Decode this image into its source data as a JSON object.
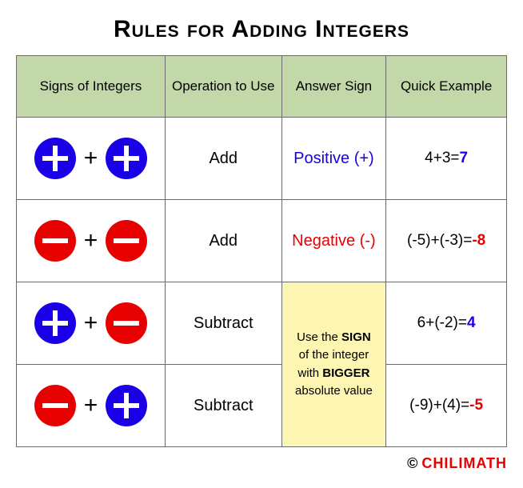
{
  "title": "Rules for Adding Integers",
  "headers": {
    "signs": "Signs of Integers",
    "operation": "Operation to Use",
    "answer": "Answer Sign",
    "example": "Quick Example"
  },
  "rows": {
    "r1": {
      "left": {
        "color": "blue",
        "shape": "plus"
      },
      "right": {
        "color": "blue",
        "shape": "plus"
      },
      "operation": "Add",
      "answer": "Positive (+)",
      "answer_color": "#1a00e6",
      "example_expr": "4+3=",
      "example_result": "7",
      "result_class": "result-pos"
    },
    "r2": {
      "left": {
        "color": "red",
        "shape": "minus"
      },
      "right": {
        "color": "red",
        "shape": "minus"
      },
      "operation": "Add",
      "answer": "Negative (-)",
      "answer_color": "#e60000",
      "example_expr": "(-5)+(-3)=",
      "example_result": "-8",
      "result_class": "result-neg"
    },
    "r3": {
      "left": {
        "color": "blue",
        "shape": "plus"
      },
      "right": {
        "color": "red",
        "shape": "minus"
      },
      "operation": "Subtract",
      "example_expr": "6+(-2)=",
      "example_result": "4",
      "result_class": "result-pos"
    },
    "r4": {
      "left": {
        "color": "red",
        "shape": "minus"
      },
      "right": {
        "color": "blue",
        "shape": "plus"
      },
      "operation": "Subtract",
      "example_expr": "(-9)+(4)=",
      "example_result": "-5",
      "result_class": "result-neg"
    }
  },
  "merged_line1_pre": "Use the ",
  "merged_line1_bold": "SIGN",
  "merged_line2": "of the integer",
  "merged_line3_pre": "with ",
  "merged_line3_bold": "BIGGER",
  "merged_line4": "absolute value",
  "footer_c": "©",
  "footer_brand": "CHILIMATH",
  "colors": {
    "header_bg": "#c2d8a8",
    "merged_bg": "#fdf6b2",
    "blue_circle": "#1a00e6",
    "red_circle": "#e60000",
    "border": "#6b6b6b"
  }
}
